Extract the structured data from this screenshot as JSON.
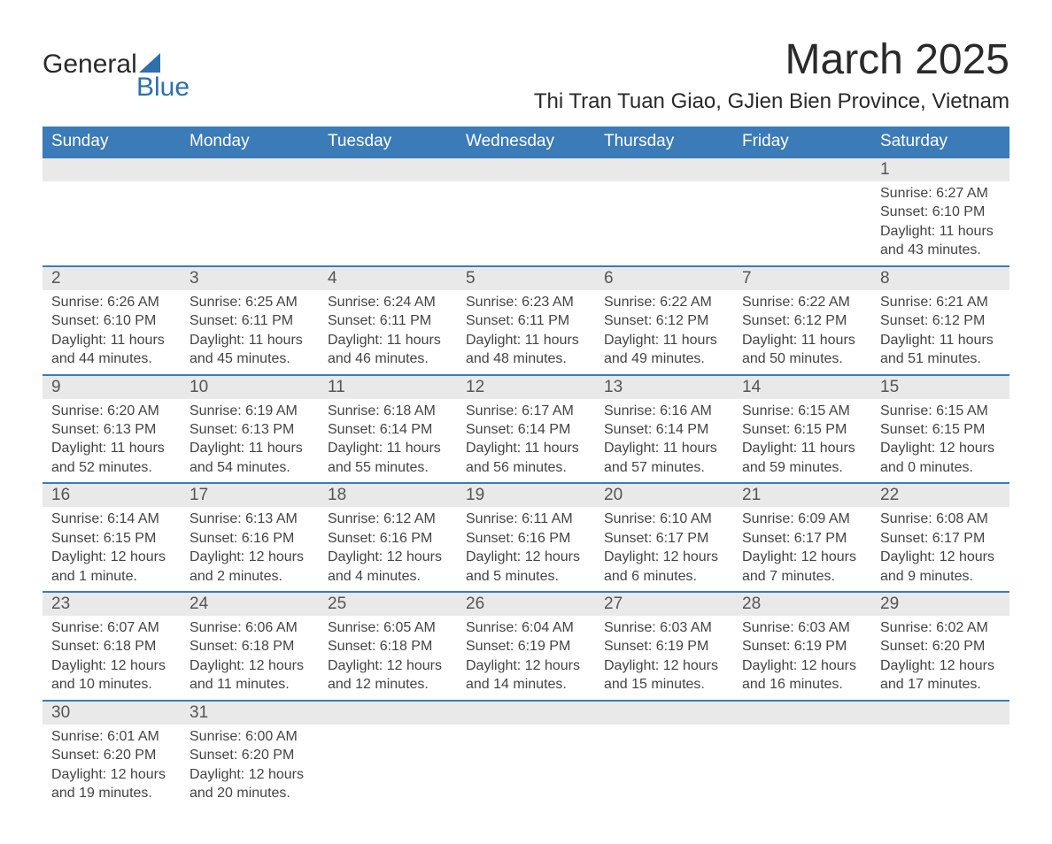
{
  "logo": {
    "text_top": "General",
    "text_bottom": "Blue",
    "color_top": "#2a2a2a",
    "color_bottom": "#2f6fae",
    "sail_color": "#2f6fae"
  },
  "header": {
    "title": "March 2025",
    "location": "Thi Tran Tuan Giao, GJien Bien Province, Vietnam"
  },
  "colors": {
    "header_bar": "#3b7bb8",
    "daynum_bg": "#e9e9e9",
    "daynum_border": "#3b7bb8",
    "text": "#444444",
    "title_text": "#2a2a2a",
    "page_bg": "#ffffff"
  },
  "typography": {
    "title_fontsize": 48,
    "location_fontsize": 24,
    "dow_fontsize": 19,
    "daynum_fontsize": 19,
    "body_fontsize": 16,
    "font_family": "Arial"
  },
  "calendar": {
    "type": "table",
    "days_of_week": [
      "Sunday",
      "Monday",
      "Tuesday",
      "Wednesday",
      "Thursday",
      "Friday",
      "Saturday"
    ],
    "weeks": [
      [
        null,
        null,
        null,
        null,
        null,
        null,
        {
          "num": "1",
          "sunrise": "Sunrise: 6:27 AM",
          "sunset": "Sunset: 6:10 PM",
          "daylight1": "Daylight: 11 hours",
          "daylight2": "and 43 minutes."
        }
      ],
      [
        {
          "num": "2",
          "sunrise": "Sunrise: 6:26 AM",
          "sunset": "Sunset: 6:10 PM",
          "daylight1": "Daylight: 11 hours",
          "daylight2": "and 44 minutes."
        },
        {
          "num": "3",
          "sunrise": "Sunrise: 6:25 AM",
          "sunset": "Sunset: 6:11 PM",
          "daylight1": "Daylight: 11 hours",
          "daylight2": "and 45 minutes."
        },
        {
          "num": "4",
          "sunrise": "Sunrise: 6:24 AM",
          "sunset": "Sunset: 6:11 PM",
          "daylight1": "Daylight: 11 hours",
          "daylight2": "and 46 minutes."
        },
        {
          "num": "5",
          "sunrise": "Sunrise: 6:23 AM",
          "sunset": "Sunset: 6:11 PM",
          "daylight1": "Daylight: 11 hours",
          "daylight2": "and 48 minutes."
        },
        {
          "num": "6",
          "sunrise": "Sunrise: 6:22 AM",
          "sunset": "Sunset: 6:12 PM",
          "daylight1": "Daylight: 11 hours",
          "daylight2": "and 49 minutes."
        },
        {
          "num": "7",
          "sunrise": "Sunrise: 6:22 AM",
          "sunset": "Sunset: 6:12 PM",
          "daylight1": "Daylight: 11 hours",
          "daylight2": "and 50 minutes."
        },
        {
          "num": "8",
          "sunrise": "Sunrise: 6:21 AM",
          "sunset": "Sunset: 6:12 PM",
          "daylight1": "Daylight: 11 hours",
          "daylight2": "and 51 minutes."
        }
      ],
      [
        {
          "num": "9",
          "sunrise": "Sunrise: 6:20 AM",
          "sunset": "Sunset: 6:13 PM",
          "daylight1": "Daylight: 11 hours",
          "daylight2": "and 52 minutes."
        },
        {
          "num": "10",
          "sunrise": "Sunrise: 6:19 AM",
          "sunset": "Sunset: 6:13 PM",
          "daylight1": "Daylight: 11 hours",
          "daylight2": "and 54 minutes."
        },
        {
          "num": "11",
          "sunrise": "Sunrise: 6:18 AM",
          "sunset": "Sunset: 6:14 PM",
          "daylight1": "Daylight: 11 hours",
          "daylight2": "and 55 minutes."
        },
        {
          "num": "12",
          "sunrise": "Sunrise: 6:17 AM",
          "sunset": "Sunset: 6:14 PM",
          "daylight1": "Daylight: 11 hours",
          "daylight2": "and 56 minutes."
        },
        {
          "num": "13",
          "sunrise": "Sunrise: 6:16 AM",
          "sunset": "Sunset: 6:14 PM",
          "daylight1": "Daylight: 11 hours",
          "daylight2": "and 57 minutes."
        },
        {
          "num": "14",
          "sunrise": "Sunrise: 6:15 AM",
          "sunset": "Sunset: 6:15 PM",
          "daylight1": "Daylight: 11 hours",
          "daylight2": "and 59 minutes."
        },
        {
          "num": "15",
          "sunrise": "Sunrise: 6:15 AM",
          "sunset": "Sunset: 6:15 PM",
          "daylight1": "Daylight: 12 hours",
          "daylight2": "and 0 minutes."
        }
      ],
      [
        {
          "num": "16",
          "sunrise": "Sunrise: 6:14 AM",
          "sunset": "Sunset: 6:15 PM",
          "daylight1": "Daylight: 12 hours",
          "daylight2": "and 1 minute."
        },
        {
          "num": "17",
          "sunrise": "Sunrise: 6:13 AM",
          "sunset": "Sunset: 6:16 PM",
          "daylight1": "Daylight: 12 hours",
          "daylight2": "and 2 minutes."
        },
        {
          "num": "18",
          "sunrise": "Sunrise: 6:12 AM",
          "sunset": "Sunset: 6:16 PM",
          "daylight1": "Daylight: 12 hours",
          "daylight2": "and 4 minutes."
        },
        {
          "num": "19",
          "sunrise": "Sunrise: 6:11 AM",
          "sunset": "Sunset: 6:16 PM",
          "daylight1": "Daylight: 12 hours",
          "daylight2": "and 5 minutes."
        },
        {
          "num": "20",
          "sunrise": "Sunrise: 6:10 AM",
          "sunset": "Sunset: 6:17 PM",
          "daylight1": "Daylight: 12 hours",
          "daylight2": "and 6 minutes."
        },
        {
          "num": "21",
          "sunrise": "Sunrise: 6:09 AM",
          "sunset": "Sunset: 6:17 PM",
          "daylight1": "Daylight: 12 hours",
          "daylight2": "and 7 minutes."
        },
        {
          "num": "22",
          "sunrise": "Sunrise: 6:08 AM",
          "sunset": "Sunset: 6:17 PM",
          "daylight1": "Daylight: 12 hours",
          "daylight2": "and 9 minutes."
        }
      ],
      [
        {
          "num": "23",
          "sunrise": "Sunrise: 6:07 AM",
          "sunset": "Sunset: 6:18 PM",
          "daylight1": "Daylight: 12 hours",
          "daylight2": "and 10 minutes."
        },
        {
          "num": "24",
          "sunrise": "Sunrise: 6:06 AM",
          "sunset": "Sunset: 6:18 PM",
          "daylight1": "Daylight: 12 hours",
          "daylight2": "and 11 minutes."
        },
        {
          "num": "25",
          "sunrise": "Sunrise: 6:05 AM",
          "sunset": "Sunset: 6:18 PM",
          "daylight1": "Daylight: 12 hours",
          "daylight2": "and 12 minutes."
        },
        {
          "num": "26",
          "sunrise": "Sunrise: 6:04 AM",
          "sunset": "Sunset: 6:19 PM",
          "daylight1": "Daylight: 12 hours",
          "daylight2": "and 14 minutes."
        },
        {
          "num": "27",
          "sunrise": "Sunrise: 6:03 AM",
          "sunset": "Sunset: 6:19 PM",
          "daylight1": "Daylight: 12 hours",
          "daylight2": "and 15 minutes."
        },
        {
          "num": "28",
          "sunrise": "Sunrise: 6:03 AM",
          "sunset": "Sunset: 6:19 PM",
          "daylight1": "Daylight: 12 hours",
          "daylight2": "and 16 minutes."
        },
        {
          "num": "29",
          "sunrise": "Sunrise: 6:02 AM",
          "sunset": "Sunset: 6:20 PM",
          "daylight1": "Daylight: 12 hours",
          "daylight2": "and 17 minutes."
        }
      ],
      [
        {
          "num": "30",
          "sunrise": "Sunrise: 6:01 AM",
          "sunset": "Sunset: 6:20 PM",
          "daylight1": "Daylight: 12 hours",
          "daylight2": "and 19 minutes."
        },
        {
          "num": "31",
          "sunrise": "Sunrise: 6:00 AM",
          "sunset": "Sunset: 6:20 PM",
          "daylight1": "Daylight: 12 hours",
          "daylight2": "and 20 minutes."
        },
        null,
        null,
        null,
        null,
        null
      ]
    ]
  }
}
